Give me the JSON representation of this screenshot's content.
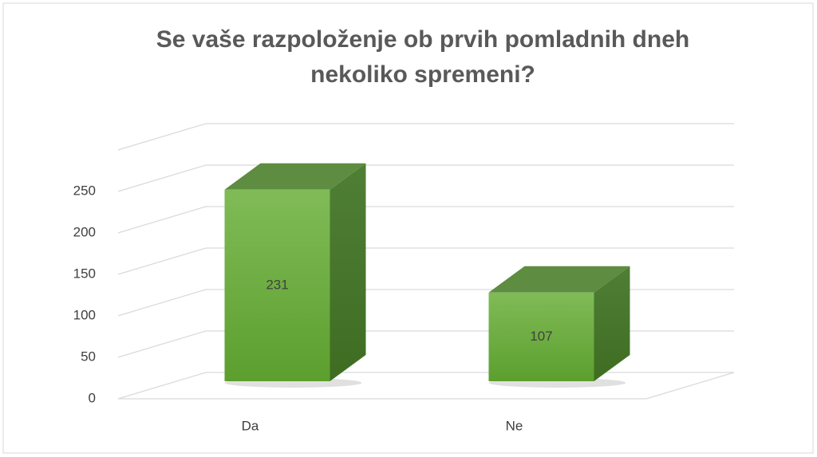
{
  "chart_data": {
    "type": "bar3d",
    "title": "Se vaše razpoloženje ob prvih pomladnih dneh nekoliko spremeni?",
    "categories": [
      "Da",
      "Ne"
    ],
    "values": [
      231,
      107
    ],
    "color": "#6aaa3a",
    "ylim": [
      0,
      300
    ],
    "yticks": [
      0,
      50,
      100,
      150,
      200,
      250
    ],
    "grid": true
  }
}
